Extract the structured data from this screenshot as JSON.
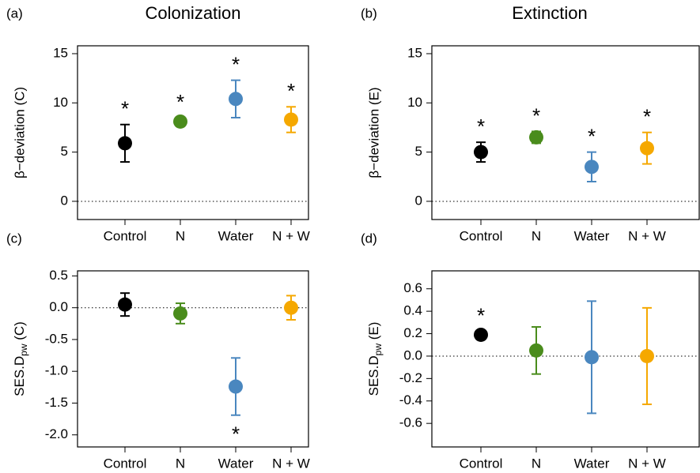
{
  "chart_data": [
    {
      "type": "errorbar",
      "panel": "(a)",
      "title": "Colonization",
      "ylabel": "β−deviation (C)",
      "categories": [
        "Control",
        "N",
        "Water",
        "N + W"
      ],
      "values": [
        5.9,
        8.1,
        10.4,
        8.3
      ],
      "errors": [
        1.9,
        0.4,
        1.9,
        1.3
      ],
      "colors": [
        "#000000",
        "#4a8c1c",
        "#4a87bf",
        "#f5a800"
      ],
      "annotations": [
        "*",
        "*",
        "*",
        "*"
      ],
      "ylim": [
        -1.85,
        15.8
      ],
      "yticks": [
        0,
        5,
        10,
        15
      ],
      "hline": 0
    },
    {
      "type": "errorbar",
      "panel": "(b)",
      "title": "Extinction",
      "ylabel": "β−deviation (E)",
      "categories": [
        "Control",
        "N",
        "Water",
        "N + W"
      ],
      "values": [
        5.0,
        6.5,
        3.5,
        5.4
      ],
      "errors": [
        1.0,
        0.6,
        1.5,
        1.6
      ],
      "colors": [
        "#000000",
        "#4a8c1c",
        "#4a87bf",
        "#f5a800"
      ],
      "annotations": [
        "*",
        "*",
        "*",
        "*"
      ],
      "ylim": [
        -1.85,
        15.8
      ],
      "yticks": [
        0,
        5,
        10,
        15
      ],
      "hline": 0
    },
    {
      "type": "errorbar",
      "panel": "(c)",
      "ylabel": "SES.D",
      "ylabel_sub": "pw",
      "ylabel_suffix": " (C)",
      "categories": [
        "Control",
        "N",
        "Water",
        "N + W"
      ],
      "values": [
        0.05,
        -0.09,
        -1.24,
        0.0
      ],
      "errors": [
        0.18,
        0.16,
        0.45,
        0.19
      ],
      "colors": [
        "#000000",
        "#4a8c1c",
        "#4a87bf",
        "#f5a800"
      ],
      "annotations": [
        null,
        null,
        "*",
        null
      ],
      "ylim": [
        -2.19,
        0.58
      ],
      "yticks": [
        0.5,
        {
          "value": 0,
          "label": "0.0"
        },
        -0.5,
        {
          "value": -1,
          "label": "-1.0"
        },
        -1.5,
        {
          "value": -2,
          "label": "-2.0"
        }
      ],
      "hline": 0
    },
    {
      "type": "errorbar",
      "panel": "(d)",
      "ylabel": "SES.D",
      "ylabel_sub": "pw",
      "ylabel_suffix": " (E)",
      "categories": [
        "Control",
        "N",
        "Water",
        "N + W"
      ],
      "values": [
        0.19,
        0.05,
        -0.01,
        0.0
      ],
      "errors": [
        0.03,
        0.21,
        0.5,
        0.43
      ],
      "colors": [
        "#000000",
        "#4a8c1c",
        "#4a87bf",
        "#f5a800"
      ],
      "annotations": [
        "*",
        null,
        null,
        null
      ],
      "ylim": [
        -0.81,
        0.76
      ],
      "yticks": [
        0.6,
        0.4,
        0.2,
        {
          "value": 0,
          "label": "0.0"
        },
        -0.2,
        -0.4,
        -0.6
      ],
      "hline": 0
    }
  ]
}
